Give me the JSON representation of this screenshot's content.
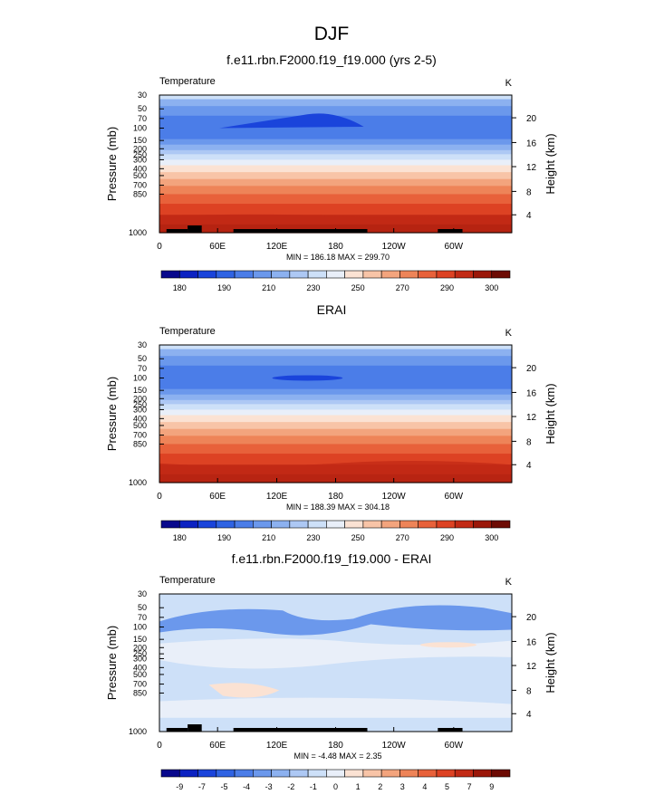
{
  "figure": {
    "title": "DJF"
  },
  "colors": {
    "temperature": [
      "#08088c",
      "#0c22c2",
      "#1a44db",
      "#2f63e3",
      "#4b7de8",
      "#6b98ec",
      "#8cb1f0",
      "#adc8f4",
      "#cde0f8",
      "#e9eff9",
      "#fbe2d3",
      "#f8c4a7",
      "#f3a47d",
      "#ee8458",
      "#e8613a",
      "#dd4223",
      "#c22a15",
      "#9b1709",
      "#6d0b04"
    ],
    "difference": [
      "#08088c",
      "#0c22c2",
      "#1a44db",
      "#2f63e3",
      "#4b7de8",
      "#6b98ec",
      "#8cb1f0",
      "#adc8f4",
      "#cde0f8",
      "#e9eff9",
      "#fbe2d3",
      "#f8c4a7",
      "#f3a47d",
      "#ee8458",
      "#e8613a",
      "#dd4223",
      "#c22a15",
      "#9b1709",
      "#6d0b04"
    ],
    "terrain": "#000000"
  },
  "chart_data": [
    {
      "type": "heatmap",
      "title": "f.e11.rbn.F2000.f19_f19.000 (yrs 2-5)",
      "variable_label": "Temperature",
      "units_label": "K",
      "ylabel": "Pressure (mb)",
      "right_label": "Height (km)",
      "x_ticks": [
        "0",
        "60E",
        "120E",
        "180",
        "120W",
        "60W"
      ],
      "y_ticks": [
        "30",
        "50",
        "70",
        "100",
        "150",
        "200",
        "250",
        "300",
        "400",
        "500",
        "700",
        "850",
        "1000"
      ],
      "height_ticks": [
        "20",
        "16",
        "12",
        "8",
        "4"
      ],
      "stats": "MIN = 186.18  MAX = 299.70",
      "min": 186.18,
      "max": 299.7,
      "colorbar_labels": [
        "180",
        "190",
        "210",
        "230",
        "250",
        "270",
        "290",
        "300"
      ]
    },
    {
      "type": "heatmap",
      "title": "ERAI",
      "variable_label": "Temperature",
      "units_label": "K",
      "ylabel": "Pressure (mb)",
      "right_label": "Height (km)",
      "x_ticks": [
        "0",
        "60E",
        "120E",
        "180",
        "120W",
        "60W"
      ],
      "y_ticks": [
        "30",
        "50",
        "70",
        "100",
        "150",
        "200",
        "250",
        "300",
        "400",
        "500",
        "700",
        "850",
        "1000"
      ],
      "height_ticks": [
        "20",
        "16",
        "12",
        "8",
        "4"
      ],
      "stats": "MIN = 188.39  MAX = 304.18",
      "min": 188.39,
      "max": 304.18,
      "colorbar_labels": [
        "180",
        "190",
        "210",
        "230",
        "250",
        "270",
        "290",
        "300"
      ]
    },
    {
      "type": "heatmap",
      "title": "f.e11.rbn.F2000.f19_f19.000 - ERAI",
      "variable_label": "Temperature",
      "units_label": "K",
      "ylabel": "Pressure (mb)",
      "right_label": "Height (km)",
      "x_ticks": [
        "0",
        "60E",
        "120E",
        "180",
        "120W",
        "60W"
      ],
      "y_ticks": [
        "30",
        "50",
        "70",
        "100",
        "150",
        "200",
        "250",
        "300",
        "400",
        "500",
        "700",
        "850",
        "1000"
      ],
      "height_ticks": [
        "20",
        "16",
        "12",
        "8",
        "4"
      ],
      "stats": "MIN = -4.48  MAX =  2.35",
      "min": -4.48,
      "max": 2.35,
      "colorbar_labels": [
        "-9",
        "-7",
        "-5",
        "-4",
        "-3",
        "-2",
        "-1",
        "0",
        "1",
        "2",
        "3",
        "4",
        "5",
        "7",
        "9"
      ]
    }
  ]
}
